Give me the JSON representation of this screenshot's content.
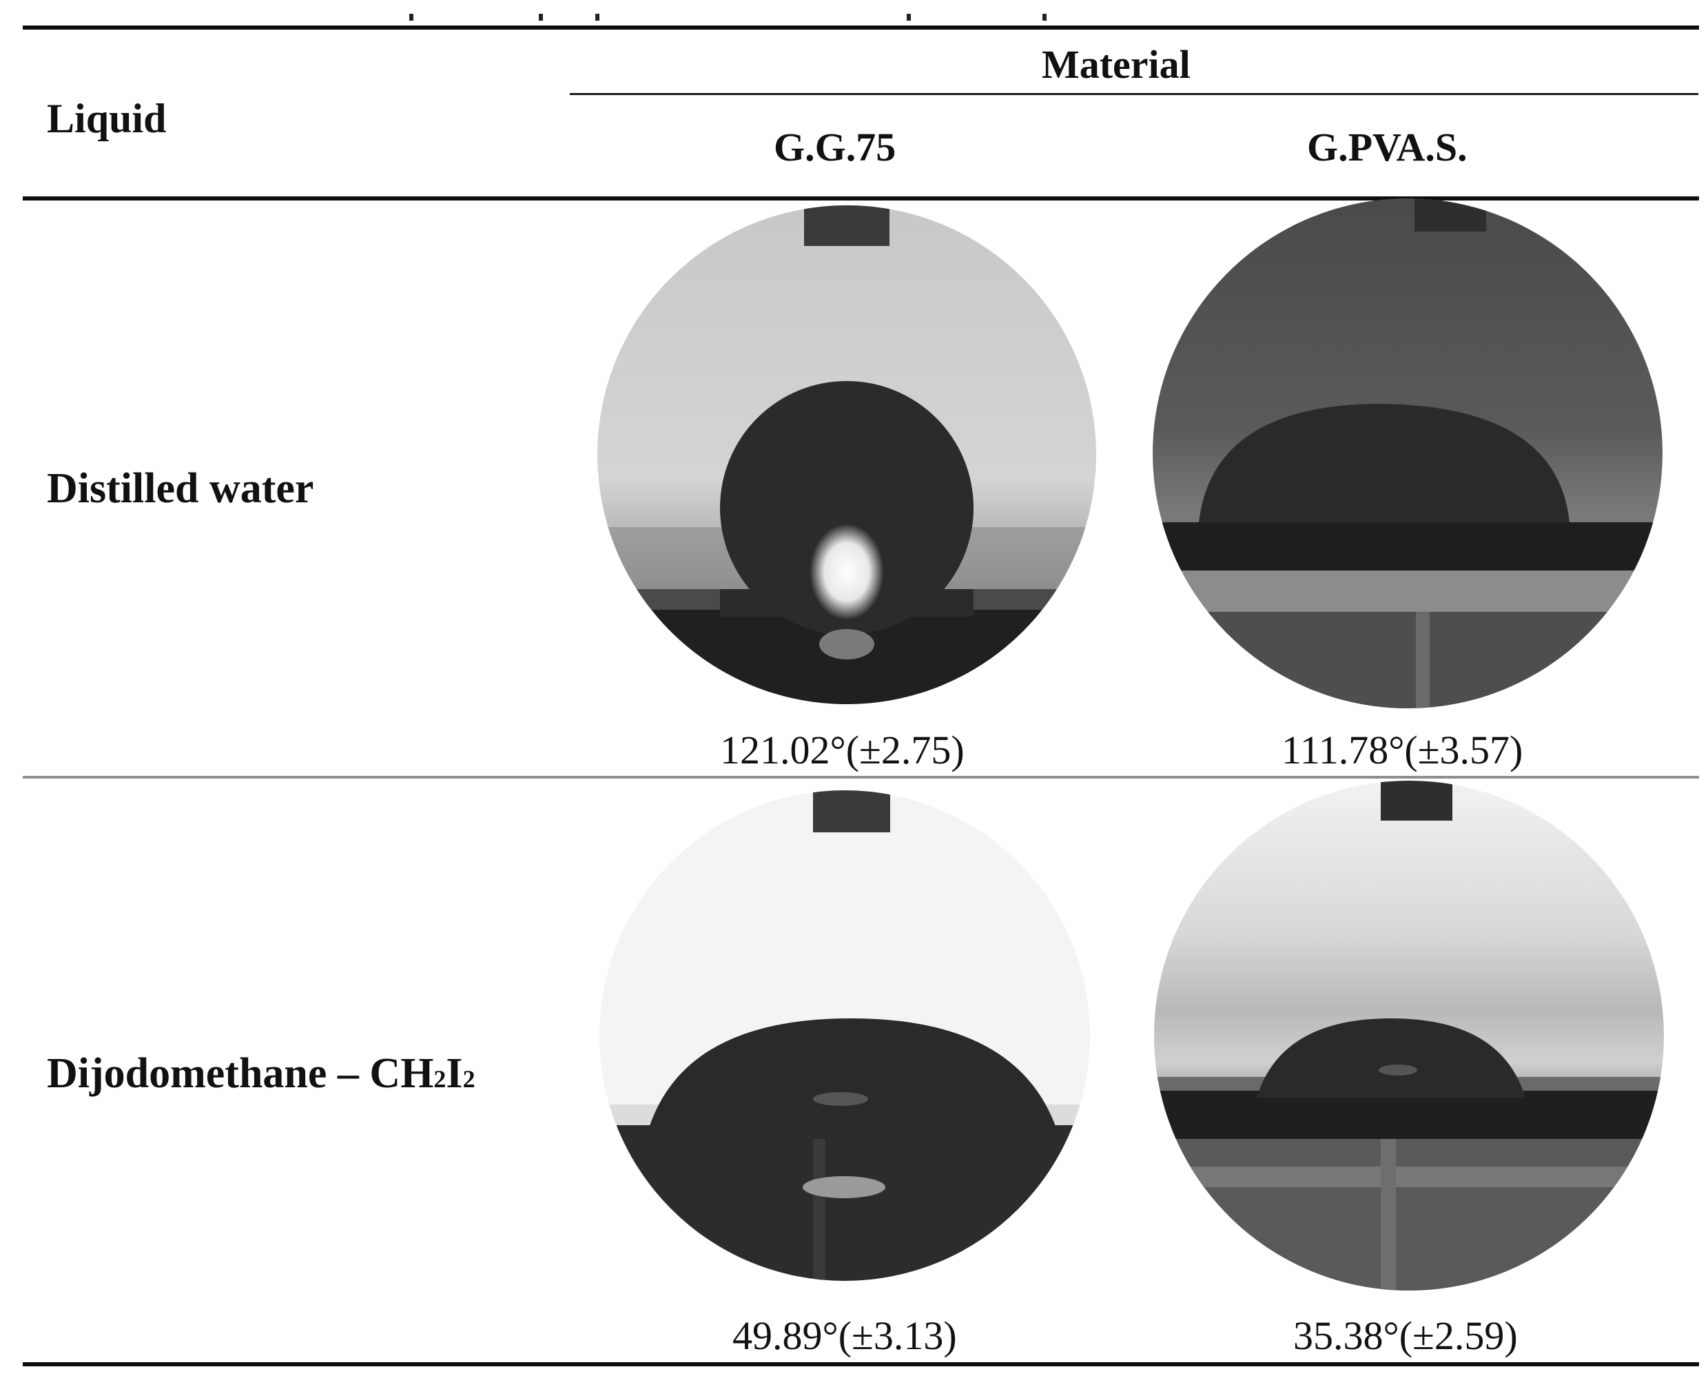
{
  "table": {
    "header": {
      "liquid": "Liquid",
      "material": "Material",
      "columns": [
        "G.G.75",
        "G.PVA.S."
      ]
    },
    "rows": [
      {
        "liquid": "Distilled water",
        "angles": [
          "121.02°(±2.75)",
          "111.78°(±3.57)"
        ]
      },
      {
        "liquid_main": "Dijodomethane – CH",
        "liquid_sub1": "2",
        "liquid_mid": "I",
        "liquid_sub2": "2",
        "angles": [
          "49.89°(±3.13)",
          "35.38°(±2.59)"
        ]
      }
    ]
  }
}
